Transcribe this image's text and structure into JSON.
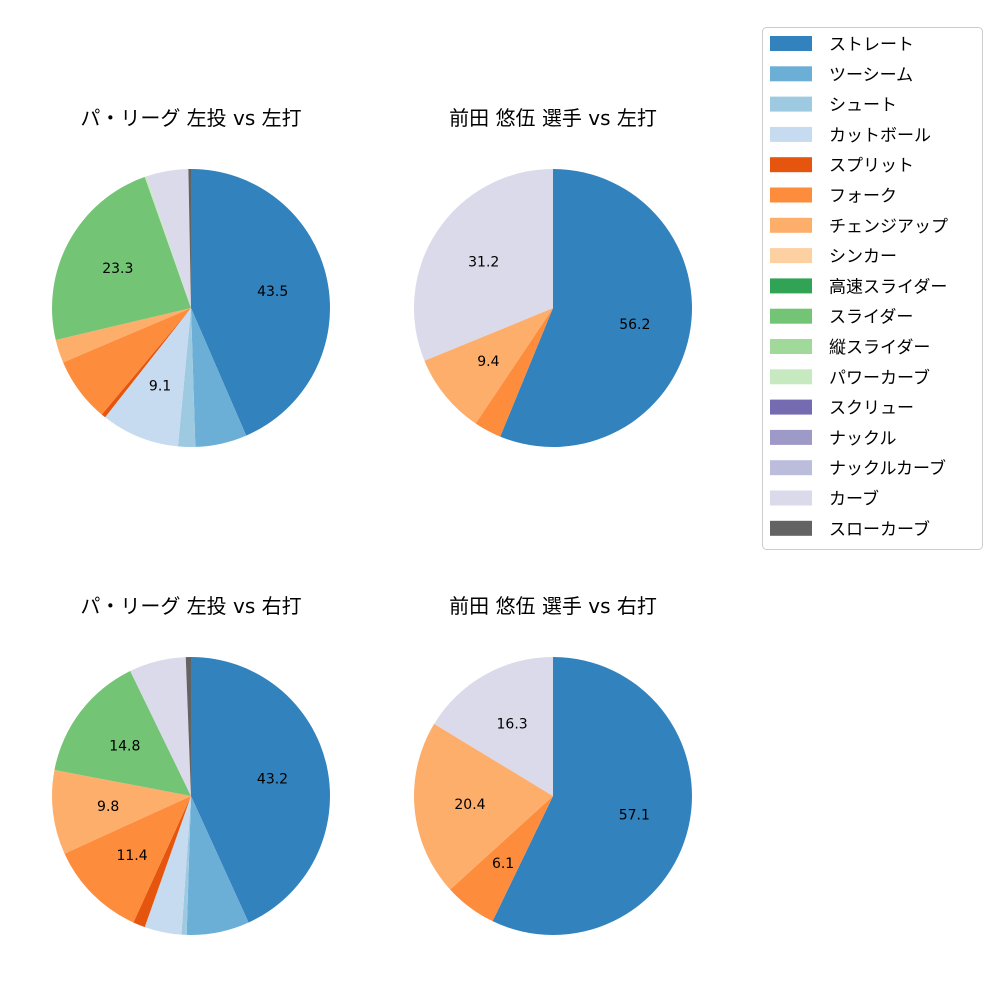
{
  "chart_data": [
    {
      "type": "pie",
      "title": "パ・リーグ 左投 vs 左打",
      "slices": [
        {
          "name": "ストレート",
          "value": 43.5,
          "label": "43.5"
        },
        {
          "name": "ツーシーム",
          "value": 6.0,
          "label": null
        },
        {
          "name": "シュート",
          "value": 2.0,
          "label": null
        },
        {
          "name": "カットボール",
          "value": 9.1,
          "label": "9.1"
        },
        {
          "name": "スプリット",
          "value": 0.5,
          "label": null
        },
        {
          "name": "フォーク",
          "value": 7.5,
          "label": null
        },
        {
          "name": "チェンジアップ",
          "value": 2.7,
          "label": null
        },
        {
          "name": "スライダー",
          "value": 23.3,
          "label": "23.3"
        },
        {
          "name": "パワーカーブ",
          "value": 0.2,
          "label": null
        },
        {
          "name": "カーブ",
          "value": 4.9,
          "label": null
        },
        {
          "name": "スローカーブ",
          "value": 0.3,
          "label": null
        }
      ]
    },
    {
      "type": "pie",
      "title": "前田 悠伍 選手 vs 左打",
      "slices": [
        {
          "name": "ストレート",
          "value": 56.2,
          "label": "56.2"
        },
        {
          "name": "フォーク",
          "value": 3.2,
          "label": null
        },
        {
          "name": "チェンジアップ",
          "value": 9.4,
          "label": "9.4"
        },
        {
          "name": "カーブ",
          "value": 31.2,
          "label": "31.2"
        }
      ]
    },
    {
      "type": "pie",
      "title": "パ・リーグ 左投 vs 右打",
      "slices": [
        {
          "name": "ストレート",
          "value": 43.2,
          "label": "43.2"
        },
        {
          "name": "ツーシーム",
          "value": 7.3,
          "label": null
        },
        {
          "name": "シュート",
          "value": 0.6,
          "label": null
        },
        {
          "name": "カットボール",
          "value": 4.3,
          "label": null
        },
        {
          "name": "スプリット",
          "value": 1.4,
          "label": null
        },
        {
          "name": "フォーク",
          "value": 11.4,
          "label": "11.4"
        },
        {
          "name": "チェンジアップ",
          "value": 9.8,
          "label": "9.8"
        },
        {
          "name": "スライダー",
          "value": 14.8,
          "label": "14.8"
        },
        {
          "name": "カーブ",
          "value": 6.6,
          "label": null
        },
        {
          "name": "スローカーブ",
          "value": 0.6,
          "label": null
        }
      ]
    },
    {
      "type": "pie",
      "title": "前田 悠伍 選手 vs 右打",
      "slices": [
        {
          "name": "ストレート",
          "value": 57.1,
          "label": "57.1"
        },
        {
          "name": "フォーク",
          "value": 6.1,
          "label": "6.1"
        },
        {
          "name": "チェンジアップ",
          "value": 20.4,
          "label": "20.4"
        },
        {
          "name": "カーブ",
          "value": 16.3,
          "label": "16.3"
        }
      ]
    }
  ],
  "legend": {
    "placement": "top-right",
    "items": [
      {
        "name": "ストレート",
        "color": "#3182bd"
      },
      {
        "name": "ツーシーム",
        "color": "#6baed6"
      },
      {
        "name": "シュート",
        "color": "#9ecae1"
      },
      {
        "name": "カットボール",
        "color": "#c6dbef"
      },
      {
        "name": "スプリット",
        "color": "#e6550d"
      },
      {
        "name": "フォーク",
        "color": "#fd8d3c"
      },
      {
        "name": "チェンジアップ",
        "color": "#fdae6b"
      },
      {
        "name": "シンカー",
        "color": "#fdd0a2"
      },
      {
        "name": "高速スライダー",
        "color": "#31a354"
      },
      {
        "name": "スライダー",
        "color": "#74c476"
      },
      {
        "name": "縦スライダー",
        "color": "#a1d99b"
      },
      {
        "name": "パワーカーブ",
        "color": "#c7e9c0"
      },
      {
        "name": "スクリュー",
        "color": "#756bb1"
      },
      {
        "name": "ナックル",
        "color": "#9e9ac8"
      },
      {
        "name": "ナックルカーブ",
        "color": "#bcbddc"
      },
      {
        "name": "カーブ",
        "color": "#dadaeb"
      },
      {
        "name": "スローカーブ",
        "color": "#636363"
      }
    ]
  }
}
